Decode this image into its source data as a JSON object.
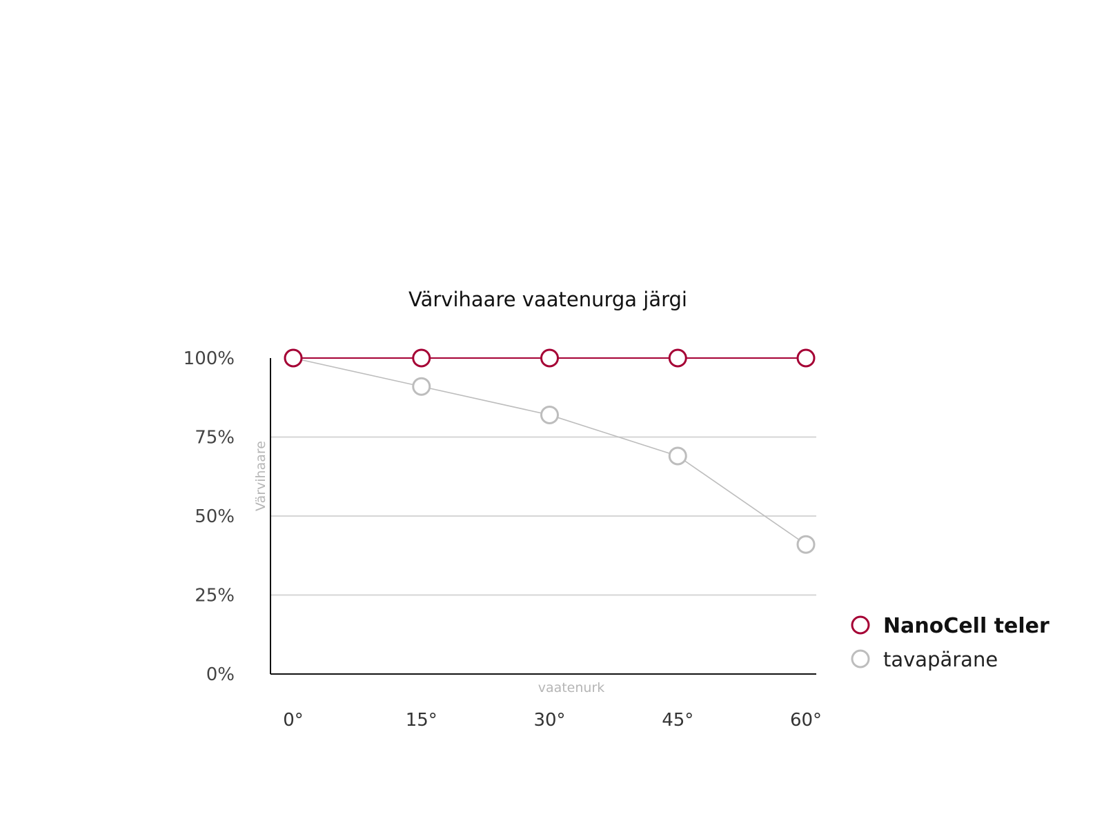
{
  "chart_data": {
    "type": "line",
    "title": "Värvihaare vaatenurga järgi",
    "xlabel": "vaatenurk",
    "ylabel": "Värvihaare",
    "categories": [
      "0°",
      "15°",
      "30°",
      "45°",
      "60°"
    ],
    "y_ticks": [
      "0%",
      "25%",
      "50%",
      "75%",
      "100%"
    ],
    "ylim": [
      0,
      100
    ],
    "grid": true,
    "legend_position": "right",
    "series": [
      {
        "name": "NanoCell teler",
        "values": [
          100,
          100,
          100,
          100,
          100
        ],
        "color": "#a50034"
      },
      {
        "name": "tavapärane",
        "values": [
          100,
          91,
          82,
          69,
          41
        ],
        "color": "#bdbdbd"
      }
    ]
  }
}
